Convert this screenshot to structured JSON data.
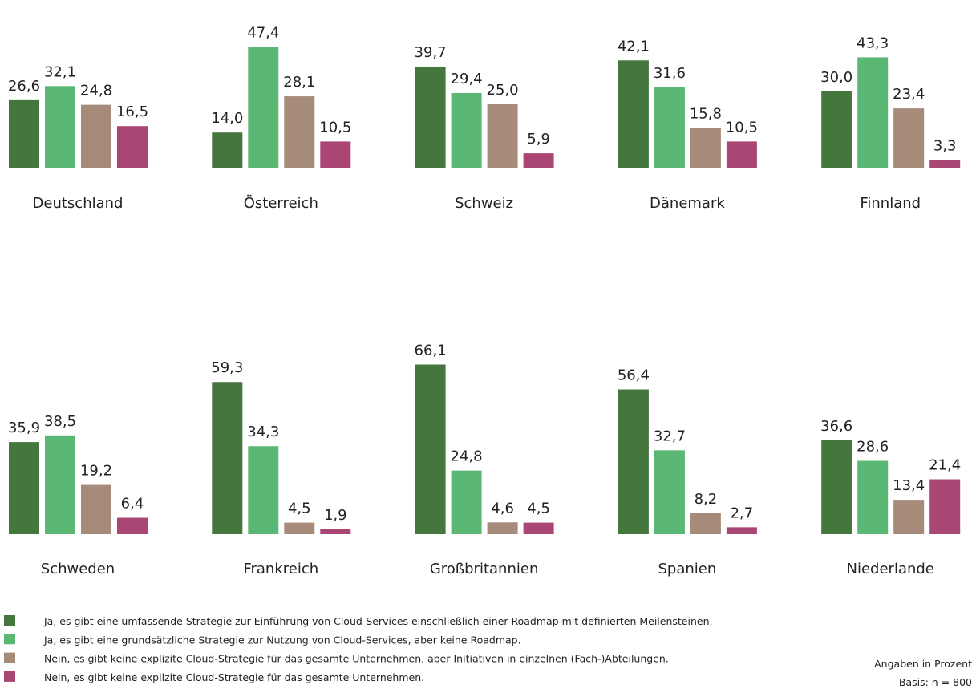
{
  "chart_data": {
    "type": "bar",
    "categories": [
      "Deutschland",
      "Österreich",
      "Schweiz",
      "Dänemark",
      "Finnland",
      "Schweden",
      "Frankreich",
      "Großbritannien",
      "Spanien",
      "Niederlande"
    ],
    "series": [
      {
        "name": "Ja, es gibt eine umfassende Strategie zur Einführung von Cloud-Services einschließlich einer Roadmap mit definierten Meilensteinen.",
        "color": "#44763e",
        "values": [
          26.6,
          14.0,
          39.7,
          42.1,
          30.0,
          35.9,
          59.3,
          66.1,
          56.4,
          36.6
        ],
        "value_labels": [
          "26,6",
          "14,0",
          "39,7",
          "42,1",
          "30,0",
          "35,9",
          "59,3",
          "66,1",
          "56,4",
          "36,6"
        ]
      },
      {
        "name": "Ja, es gibt eine grundsätzliche Strategie zur Nutzung von Cloud-Services, aber keine Roadmap.",
        "color": "#5bb774",
        "values": [
          32.1,
          47.4,
          29.4,
          31.6,
          43.3,
          38.5,
          34.3,
          24.8,
          32.7,
          28.6
        ],
        "value_labels": [
          "32,1",
          "47,4",
          "29,4",
          "31,6",
          "43,3",
          "38,5",
          "34,3",
          "24,8",
          "32,7",
          "28,6"
        ]
      },
      {
        "name": "Nein, es gibt keine explizite Cloud-Strategie für das gesamte Unternehmen, aber Initiativen in einzelnen (Fach-)Abteilungen.",
        "color": "#a68b7b",
        "values": [
          24.8,
          28.1,
          25.0,
          15.8,
          23.4,
          19.2,
          4.5,
          4.6,
          8.2,
          13.4
        ],
        "value_labels": [
          "24,8",
          "28,1",
          "25,0",
          "15,8",
          "23,4",
          "19,2",
          "4,5",
          "4,6",
          "8,2",
          "13,4"
        ]
      },
      {
        "name": "Nein, es gibt keine explizite Cloud-Strategie für das gesamte Unternehmen.",
        "color": "#a94673",
        "values": [
          16.5,
          10.5,
          5.9,
          10.5,
          3.3,
          6.4,
          1.9,
          4.5,
          2.7,
          21.4
        ],
        "value_labels": [
          "16,5",
          "10,5",
          "5,9",
          "10,5",
          "3,3",
          "6,4",
          "1,9",
          "4,5",
          "2,7",
          "21,4"
        ]
      }
    ],
    "notes": [
      "Angaben in Prozent",
      "Basis: n = 800"
    ]
  }
}
